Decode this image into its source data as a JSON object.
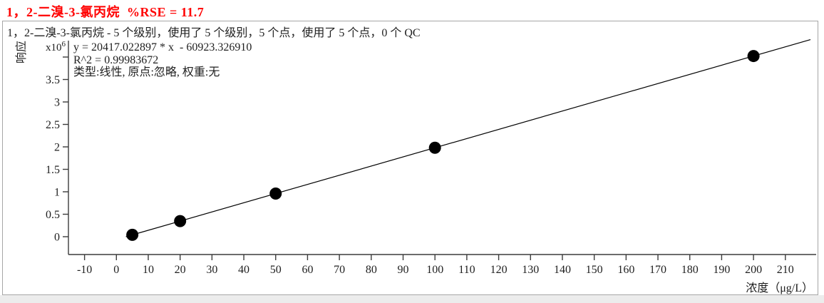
{
  "title": {
    "text": "1，2-二溴-3-氯丙烷  %RSE = 11.7",
    "color": "#ff0000"
  },
  "subtitle": "1，2-二溴-3-氯丙烷 - 5 个级别，使用了 5 个级别，5 个点，使用了 5 个点，0 个 QC",
  "stats": {
    "equation": "y = 20417.022897 * x  - 60923.326910",
    "r2": "R^2 = 0.99983672",
    "fit_type": "类型:线性, 原点:忽略, 权重:无"
  },
  "chart_data": {
    "type": "scatter",
    "title": "1，2-二溴-3-氯丙烷  %RSE = 11.7",
    "subtitle": "1，2-二溴-3-氯丙烷 - 5 个级别，使用了 5 个级别，5 个点，使用了 5 个点，0 个 QC",
    "xlabel": "浓度（μg/L）",
    "ylabel": "响应",
    "y_unit_base": "x10",
    "y_unit_exponent": "6",
    "grid": false,
    "xlim": [
      -17,
      219
    ],
    "ylim": [
      0,
      4400000
    ],
    "x_ticks": [
      -10,
      0,
      10,
      20,
      30,
      40,
      50,
      60,
      70,
      80,
      90,
      100,
      110,
      120,
      130,
      140,
      150,
      160,
      170,
      180,
      190,
      200,
      210
    ],
    "y_ticks": [
      {
        "value": 0,
        "label": "0"
      },
      {
        "value": 0.5,
        "label": "0.5"
      },
      {
        "value": 1,
        "label": "1"
      },
      {
        "value": 1.5,
        "label": "1.5"
      },
      {
        "value": 2,
        "label": "2"
      },
      {
        "value": 2.5,
        "label": "2.5"
      },
      {
        "value": 3,
        "label": "3"
      },
      {
        "value": 3.5,
        "label": "3.5"
      },
      {
        "value": 4,
        "label": ""
      }
    ],
    "points": [
      {
        "x": 5,
        "y": 41162
      },
      {
        "x": 20,
        "y": 347417
      },
      {
        "x": 50,
        "y": 959928
      },
      {
        "x": 100,
        "y": 1980779
      },
      {
        "x": 200,
        "y": 4022481
      }
    ],
    "fit_line": {
      "slope": 20417.022897,
      "intercept": -60923.32691,
      "r_squared": 0.99983672,
      "type": "线性",
      "origin": "忽略",
      "weight": "无"
    },
    "colors": {
      "point": "#000000",
      "line": "#000000",
      "axis": "#3c3c3c",
      "tick_label": "#1f1f1f"
    }
  }
}
